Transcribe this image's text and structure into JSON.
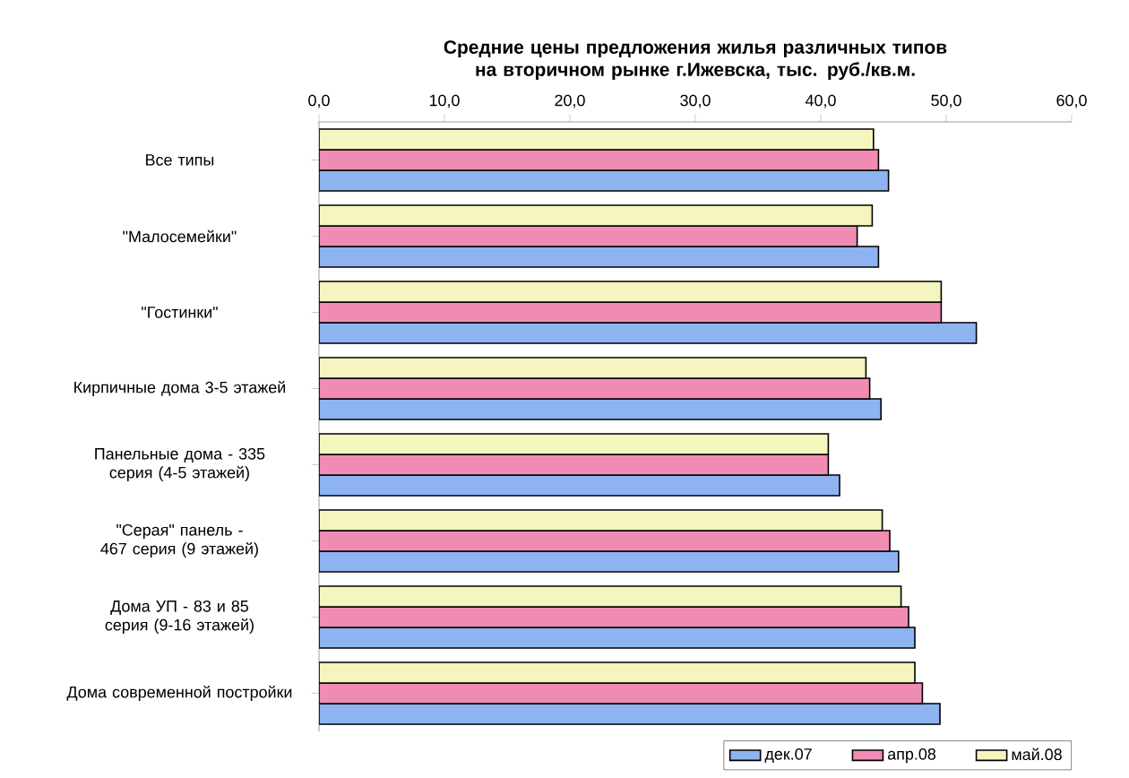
{
  "chart_data": {
    "type": "bar",
    "orientation": "horizontal",
    "title": "Средние цены предложения жилья различных типов на вторичном рынке г.Ижевска, тыс. руб./кв.м.",
    "categories": [
      "Все типы",
      "\"Малосемейки\"",
      "\"Гостинки\"",
      "Кирпичные дома 3-5 этажей",
      "Панельные дома - 335 серия (4-5 этажей)",
      "\"Серая\" панель - 467 серия (9 этажей)",
      "Дома УП - 83 и 85 серия (9-16 этажей)",
      "Дома современной постройки"
    ],
    "series": [
      {
        "name": "дек.07",
        "color": "#8db4f0",
        "values": [
          45.4,
          44.6,
          52.4,
          44.8,
          41.5,
          46.2,
          47.5,
          49.5
        ]
      },
      {
        "name": "апр.08",
        "color": "#f08cb4",
        "values": [
          44.6,
          42.9,
          49.6,
          43.9,
          40.6,
          45.5,
          47.0,
          48.1
        ]
      },
      {
        "name": "май.08",
        "color": "#f5f5c0",
        "values": [
          44.2,
          44.1,
          49.6,
          43.6,
          40.6,
          44.9,
          46.4,
          47.5
        ]
      }
    ],
    "xlim": [
      0,
      60
    ],
    "xticks": [
      {
        "value": 0,
        "label": "0,0"
      },
      {
        "value": 10,
        "label": "10,0"
      },
      {
        "value": 20,
        "label": "20,0"
      },
      {
        "value": 30,
        "label": "30,0"
      },
      {
        "value": 40,
        "label": "40,0"
      },
      {
        "value": 50,
        "label": "50,0"
      },
      {
        "value": 60,
        "label": "60,0"
      }
    ],
    "legend": "bottom right"
  }
}
